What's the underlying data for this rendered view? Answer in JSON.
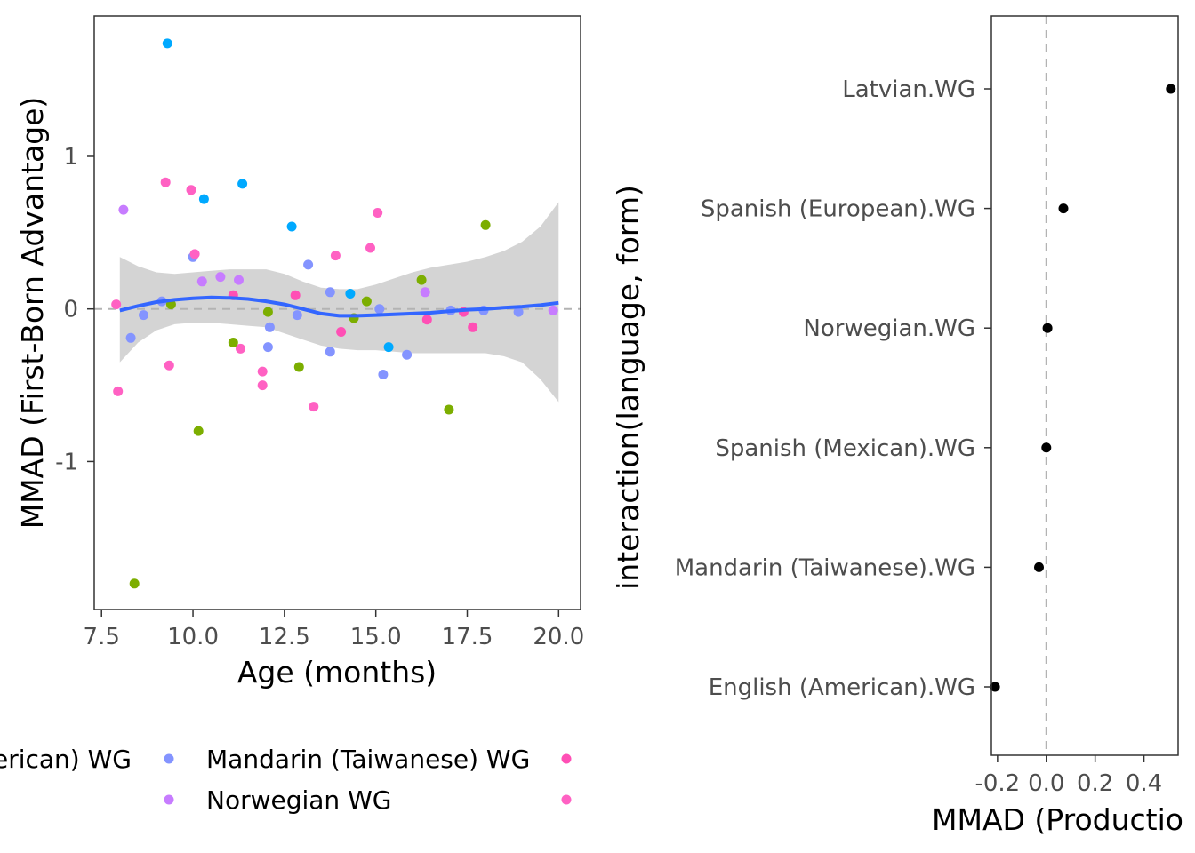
{
  "chart_data": [
    {
      "type": "scatter",
      "xlabel": "Age (months)",
      "ylabel": "MMAD (First-Born Advantage)",
      "xlim": [
        7.3,
        20.6
      ],
      "ylim": [
        -1.97,
        1.92
      ],
      "x_ticks": [
        7.5,
        10.0,
        12.5,
        15.0,
        17.5,
        20.0
      ],
      "x_tick_labels": [
        "7.5",
        "10.0",
        "12.5",
        "15.0",
        "17.5",
        "20.0"
      ],
      "y_ticks": [
        -1,
        0,
        1
      ],
      "y_tick_labels": [
        "-1",
        "0",
        "1"
      ],
      "grid": false,
      "reference_line": {
        "y": 0,
        "style": "dashed",
        "color": "#b3b3b3"
      },
      "series_colors": {
        "english": "#7CAE00",
        "latvian": "#00A9FF",
        "mandarin": "#8494FF",
        "norwegian": "#C77CFF",
        "spanish_eu": "#FF61C3",
        "spanish_mx": "#FF4FB5"
      },
      "points": [
        {
          "x": 9.3,
          "y": 1.74,
          "series": "latvian"
        },
        {
          "x": 9.25,
          "y": 0.83,
          "series": "spanish_eu"
        },
        {
          "x": 9.95,
          "y": 0.78,
          "series": "spanish_eu"
        },
        {
          "x": 10.3,
          "y": 0.72,
          "series": "latvian"
        },
        {
          "x": 11.35,
          "y": 0.82,
          "series": "latvian"
        },
        {
          "x": 8.1,
          "y": 0.65,
          "series": "norwegian"
        },
        {
          "x": 12.7,
          "y": 0.54,
          "series": "latvian"
        },
        {
          "x": 15.05,
          "y": 0.63,
          "series": "spanish_eu"
        },
        {
          "x": 18.0,
          "y": 0.55,
          "series": "english"
        },
        {
          "x": 10.0,
          "y": 0.34,
          "series": "mandarin"
        },
        {
          "x": 10.05,
          "y": 0.36,
          "series": "spanish_eu"
        },
        {
          "x": 10.25,
          "y": 0.18,
          "series": "norwegian"
        },
        {
          "x": 10.75,
          "y": 0.21,
          "series": "norwegian"
        },
        {
          "x": 11.25,
          "y": 0.19,
          "series": "norwegian"
        },
        {
          "x": 13.15,
          "y": 0.29,
          "series": "mandarin"
        },
        {
          "x": 13.9,
          "y": 0.35,
          "series": "spanish_eu"
        },
        {
          "x": 14.85,
          "y": 0.4,
          "series": "spanish_eu"
        },
        {
          "x": 16.25,
          "y": 0.19,
          "series": "english"
        },
        {
          "x": 16.35,
          "y": 0.11,
          "series": "norwegian"
        },
        {
          "x": 7.9,
          "y": 0.03,
          "series": "spanish_eu"
        },
        {
          "x": 9.15,
          "y": 0.05,
          "series": "mandarin"
        },
        {
          "x": 9.4,
          "y": 0.03,
          "series": "english"
        },
        {
          "x": 11.1,
          "y": 0.09,
          "series": "spanish_mx"
        },
        {
          "x": 12.8,
          "y": 0.09,
          "series": "spanish_mx"
        },
        {
          "x": 13.75,
          "y": 0.11,
          "series": "mandarin"
        },
        {
          "x": 14.3,
          "y": 0.1,
          "series": "latvian"
        },
        {
          "x": 14.75,
          "y": 0.05,
          "series": "english"
        },
        {
          "x": 15.1,
          "y": 0.0,
          "series": "mandarin"
        },
        {
          "x": 17.05,
          "y": -0.01,
          "series": "mandarin"
        },
        {
          "x": 17.4,
          "y": -0.02,
          "series": "spanish_mx"
        },
        {
          "x": 17.95,
          "y": -0.01,
          "series": "mandarin"
        },
        {
          "x": 18.9,
          "y": -0.02,
          "series": "mandarin"
        },
        {
          "x": 19.85,
          "y": -0.01,
          "series": "norwegian"
        },
        {
          "x": 8.3,
          "y": -0.19,
          "series": "mandarin"
        },
        {
          "x": 8.65,
          "y": -0.04,
          "series": "mandarin"
        },
        {
          "x": 12.05,
          "y": -0.02,
          "series": "english"
        },
        {
          "x": 12.1,
          "y": -0.12,
          "series": "mandarin"
        },
        {
          "x": 12.85,
          "y": -0.04,
          "series": "mandarin"
        },
        {
          "x": 14.05,
          "y": -0.15,
          "series": "spanish_mx"
        },
        {
          "x": 14.4,
          "y": -0.06,
          "series": "english"
        },
        {
          "x": 16.4,
          "y": -0.07,
          "series": "spanish_mx"
        },
        {
          "x": 17.65,
          "y": -0.12,
          "series": "spanish_mx"
        },
        {
          "x": 11.1,
          "y": -0.22,
          "series": "english"
        },
        {
          "x": 11.3,
          "y": -0.26,
          "series": "spanish_eu"
        },
        {
          "x": 12.05,
          "y": -0.25,
          "series": "mandarin"
        },
        {
          "x": 13.75,
          "y": -0.28,
          "series": "mandarin"
        },
        {
          "x": 15.35,
          "y": -0.25,
          "series": "latvian"
        },
        {
          "x": 15.85,
          "y": -0.3,
          "series": "mandarin"
        },
        {
          "x": 9.35,
          "y": -0.37,
          "series": "spanish_eu"
        },
        {
          "x": 11.9,
          "y": -0.41,
          "series": "spanish_eu"
        },
        {
          "x": 12.9,
          "y": -0.38,
          "series": "english"
        },
        {
          "x": 15.2,
          "y": -0.43,
          "series": "mandarin"
        },
        {
          "x": 7.95,
          "y": -0.54,
          "series": "spanish_eu"
        },
        {
          "x": 11.9,
          "y": -0.5,
          "series": "spanish_eu"
        },
        {
          "x": 13.3,
          "y": -0.64,
          "series": "spanish_eu"
        },
        {
          "x": 17.0,
          "y": -0.66,
          "series": "english"
        },
        {
          "x": 10.15,
          "y": -0.8,
          "series": "english"
        },
        {
          "x": 8.4,
          "y": -1.8,
          "series": "english"
        }
      ],
      "smooth": {
        "color": "#3366FF",
        "band_color": "#cccccc",
        "x": [
          8.0,
          8.5,
          9.0,
          9.5,
          10.0,
          10.5,
          11.0,
          11.5,
          12.0,
          12.5,
          13.0,
          13.5,
          14.0,
          14.5,
          15.0,
          15.5,
          16.0,
          16.5,
          17.0,
          17.5,
          18.0,
          18.5,
          19.0,
          19.5,
          20.0
        ],
        "y": [
          -0.01,
          0.02,
          0.045,
          0.06,
          0.07,
          0.075,
          0.072,
          0.065,
          0.05,
          0.03,
          0.0,
          -0.03,
          -0.045,
          -0.045,
          -0.04,
          -0.035,
          -0.03,
          -0.025,
          -0.015,
          -0.005,
          0.0,
          0.008,
          0.015,
          0.025,
          0.04
        ],
        "lower": [
          -0.35,
          -0.22,
          -0.14,
          -0.1,
          -0.09,
          -0.09,
          -0.1,
          -0.11,
          -0.12,
          -0.16,
          -0.2,
          -0.24,
          -0.26,
          -0.27,
          -0.27,
          -0.28,
          -0.29,
          -0.29,
          -0.29,
          -0.29,
          -0.29,
          -0.31,
          -0.35,
          -0.46,
          -0.61
        ],
        "upper": [
          0.34,
          0.28,
          0.24,
          0.23,
          0.24,
          0.25,
          0.26,
          0.26,
          0.26,
          0.23,
          0.18,
          0.14,
          0.13,
          0.13,
          0.16,
          0.2,
          0.24,
          0.27,
          0.29,
          0.31,
          0.34,
          0.38,
          0.44,
          0.54,
          0.7
        ]
      },
      "legend": {
        "position": "bottom",
        "entries": [
          {
            "label": "English (American) WG",
            "visible_text": "erican) WG",
            "color": "#7CAE00"
          },
          {
            "label": "Mandarin (Taiwanese) WG",
            "visible_text": "Mandarin (Taiwanese) WG",
            "color": "#8494FF"
          },
          {
            "label": "Norwegian WG",
            "visible_text": "Norwegian WG",
            "color": "#C77CFF"
          },
          {
            "label": "",
            "visible_text": "",
            "color": "#FF4FB5"
          },
          {
            "label": "",
            "visible_text": "",
            "color": "#FF61C3"
          }
        ]
      }
    },
    {
      "type": "scatter",
      "xlabel": "MMAD (Productio",
      "ylabel": "interaction(language, form)",
      "xlim": [
        -0.225,
        0.54
      ],
      "x_ticks": [
        -0.2,
        0.0,
        0.2,
        0.4
      ],
      "x_tick_labels": [
        "-0.2",
        "0.0",
        "0.2",
        "0.4"
      ],
      "grid": false,
      "reference_line": {
        "x": 0,
        "style": "dashed",
        "color": "#b3b3b3"
      },
      "point_color": "#000000",
      "categories": [
        "Latvian.WG",
        "Spanish (European).WG",
        "Norwegian.WG",
        "Spanish (Mexican).WG",
        "Mandarin (Taiwanese).WG",
        "English (American).WG"
      ],
      "values": [
        0.51,
        0.07,
        0.005,
        0.0,
        -0.03,
        -0.21
      ]
    }
  ]
}
